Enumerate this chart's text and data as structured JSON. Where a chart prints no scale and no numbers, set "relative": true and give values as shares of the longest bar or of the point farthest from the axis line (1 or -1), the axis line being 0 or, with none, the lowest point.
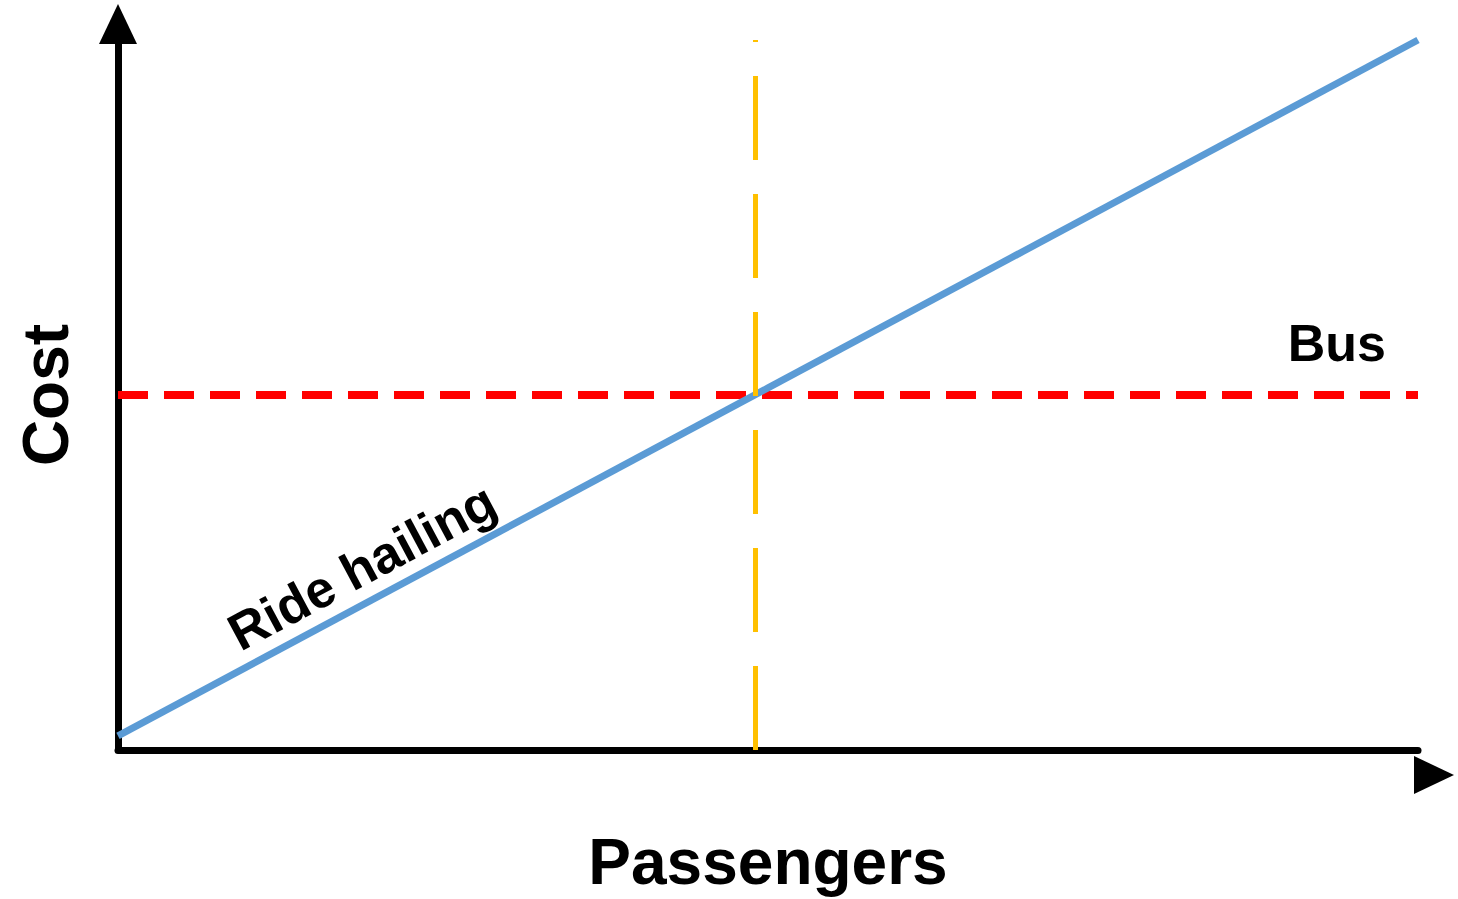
{
  "chart_data": {
    "type": "line",
    "relative": true,
    "xlabel": "Passengers",
    "ylabel": "Cost",
    "categories": [
      null,
      null,
      null
    ],
    "series": [
      {
        "name": "Ride hailing",
        "color": "#5b9bd5",
        "values": [
          0.02,
          0.51,
          1
        ],
        "line_style": "solid"
      },
      {
        "name": "Bus",
        "color": "#ff0000",
        "values": [
          0.5,
          0.5,
          0.5
        ],
        "line_style": "dashed"
      }
    ],
    "ref_lines": [
      {
        "axis": "x",
        "color": "#ffc000",
        "line_style": "dashed"
      }
    ],
    "grid": false,
    "legend": false,
    "marker": "none"
  }
}
